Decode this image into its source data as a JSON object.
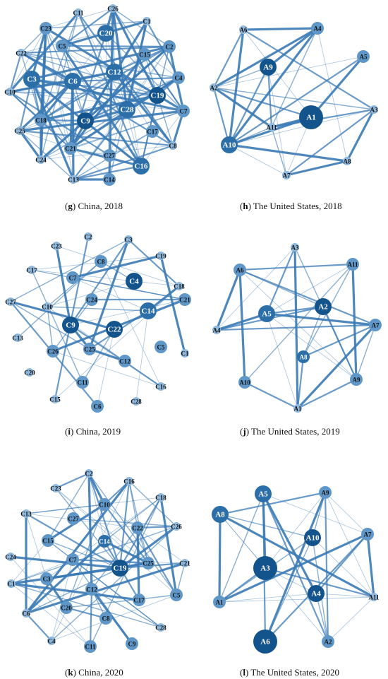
{
  "panels": [
    {
      "id": "g",
      "caption_letter": "g",
      "caption_text": " China, 2018",
      "nodes": [
        {
          "label": "C26",
          "size": 0,
          "shade": 0
        },
        {
          "label": "C11",
          "size": 0,
          "shade": 0
        },
        {
          "label": "C1",
          "size": 0,
          "shade": 0
        },
        {
          "label": "C23",
          "size": 1,
          "shade": 1
        },
        {
          "label": "C20",
          "size": 2,
          "shade": 2
        },
        {
          "label": "C2",
          "size": 1,
          "shade": 1
        },
        {
          "label": "C22",
          "size": 0,
          "shade": 0
        },
        {
          "label": "C5",
          "size": 1,
          "shade": 1
        },
        {
          "label": "C15",
          "size": 1,
          "shade": 1
        },
        {
          "label": "C10",
          "size": 0,
          "shade": 0
        },
        {
          "label": "C3",
          "size": 2,
          "shade": 2
        },
        {
          "label": "C12",
          "size": 2,
          "shade": 2
        },
        {
          "label": "C4",
          "size": 1,
          "shade": 1
        },
        {
          "label": "C6",
          "size": 2,
          "shade": 2
        },
        {
          "label": "C19",
          "size": 2,
          "shade": 3
        },
        {
          "label": "C28",
          "size": 2,
          "shade": 2
        },
        {
          "label": "C7",
          "size": 1,
          "shade": 1
        },
        {
          "label": "C18",
          "size": 1,
          "shade": 1
        },
        {
          "label": "C9",
          "size": 2,
          "shade": 3
        },
        {
          "label": "C25",
          "size": 0,
          "shade": 0
        },
        {
          "label": "C17",
          "size": 1,
          "shade": 1
        },
        {
          "label": "C8",
          "size": 0,
          "shade": 0
        },
        {
          "label": "C21",
          "size": 1,
          "shade": 1
        },
        {
          "label": "C27",
          "size": 1,
          "shade": 1
        },
        {
          "label": "C16",
          "size": 2,
          "shade": 2
        },
        {
          "label": "C24",
          "size": 0,
          "shade": 0
        },
        {
          "label": "C13",
          "size": 0,
          "shade": 0
        },
        {
          "label": "C14",
          "size": 1,
          "shade": 1
        }
      ]
    },
    {
      "id": "h",
      "caption_letter": "h",
      "caption_text": " The United States, 2018",
      "nodes": [
        {
          "label": "A6",
          "size": 0,
          "shade": 0
        },
        {
          "label": "A4",
          "size": 1,
          "shade": 1
        },
        {
          "label": "A9",
          "size": 2,
          "shade": 3
        },
        {
          "label": "A5",
          "size": 1,
          "shade": 1
        },
        {
          "label": "A2",
          "size": 0,
          "shade": 0
        },
        {
          "label": "A3",
          "size": 0,
          "shade": 0
        },
        {
          "label": "A1",
          "size": 3,
          "shade": 3
        },
        {
          "label": "A11",
          "size": 0,
          "shade": 0
        },
        {
          "label": "A10",
          "size": 2,
          "shade": 2
        },
        {
          "label": "A8",
          "size": 0,
          "shade": 0
        },
        {
          "label": "A7",
          "size": 0,
          "shade": 0
        }
      ]
    },
    {
      "id": "i",
      "caption_letter": "i",
      "caption_text": " China, 2019",
      "nodes": [
        {
          "label": "C2",
          "size": 0,
          "shade": 0
        },
        {
          "label": "C3",
          "size": 0,
          "shade": 0
        },
        {
          "label": "C23",
          "size": 0,
          "shade": 0
        },
        {
          "label": "C8",
          "size": 1,
          "shade": 1
        },
        {
          "label": "C19",
          "size": 0,
          "shade": 0
        },
        {
          "label": "C17",
          "size": 0,
          "shade": 0
        },
        {
          "label": "C7",
          "size": 1,
          "shade": 1
        },
        {
          "label": "C4",
          "size": 2,
          "shade": 3
        },
        {
          "label": "C18",
          "size": 0,
          "shade": 0
        },
        {
          "label": "C24",
          "size": 1,
          "shade": 1
        },
        {
          "label": "C27",
          "size": 0,
          "shade": 0
        },
        {
          "label": "C10",
          "size": 0,
          "shade": 0
        },
        {
          "label": "C14",
          "size": 2,
          "shade": 2
        },
        {
          "label": "C21",
          "size": 1,
          "shade": 1
        },
        {
          "label": "C9",
          "size": 2,
          "shade": 3
        },
        {
          "label": "C22",
          "size": 2,
          "shade": 3
        },
        {
          "label": "C13",
          "size": 0,
          "shade": 0
        },
        {
          "label": "C26",
          "size": 1,
          "shade": 1
        },
        {
          "label": "C25",
          "size": 1,
          "shade": 1
        },
        {
          "label": "C5",
          "size": 1,
          "shade": 1
        },
        {
          "label": "C1",
          "size": 0,
          "shade": 0
        },
        {
          "label": "C12",
          "size": 1,
          "shade": 1
        },
        {
          "label": "C20",
          "size": 0,
          "shade": 0
        },
        {
          "label": "C11",
          "size": 1,
          "shade": 1
        },
        {
          "label": "C16",
          "size": 0,
          "shade": 0
        },
        {
          "label": "C15",
          "size": 0,
          "shade": 0
        },
        {
          "label": "C6",
          "size": 1,
          "shade": 1
        },
        {
          "label": "C28",
          "size": 0,
          "shade": 0
        }
      ]
    },
    {
      "id": "j",
      "caption_letter": "j",
      "caption_text": " The United States, 2019",
      "nodes": [
        {
          "label": "A3",
          "size": 0,
          "shade": 0
        },
        {
          "label": "A6",
          "size": 1,
          "shade": 1
        },
        {
          "label": "A11",
          "size": 1,
          "shade": 1
        },
        {
          "label": "A5",
          "size": 2,
          "shade": 2
        },
        {
          "label": "A2",
          "size": 2,
          "shade": 3
        },
        {
          "label": "A7",
          "size": 1,
          "shade": 1
        },
        {
          "label": "A4",
          "size": 0,
          "shade": 0
        },
        {
          "label": "A8",
          "size": 1,
          "shade": 2
        },
        {
          "label": "A10",
          "size": 1,
          "shade": 1
        },
        {
          "label": "A9",
          "size": 1,
          "shade": 1
        },
        {
          "label": "A1",
          "size": 0,
          "shade": 0
        }
      ]
    },
    {
      "id": "k",
      "caption_letter": "k",
      "caption_text": " China, 2020",
      "nodes": [
        {
          "label": "C2",
          "size": 0,
          "shade": 0
        },
        {
          "label": "C16",
          "size": 0,
          "shade": 0
        },
        {
          "label": "C23",
          "size": 0,
          "shade": 0
        },
        {
          "label": "C10",
          "size": 1,
          "shade": 1
        },
        {
          "label": "C18",
          "size": 0,
          "shade": 0
        },
        {
          "label": "C13",
          "size": 0,
          "shade": 0
        },
        {
          "label": "C27",
          "size": 1,
          "shade": 1
        },
        {
          "label": "C22",
          "size": 1,
          "shade": 1
        },
        {
          "label": "C26",
          "size": 0,
          "shade": 0
        },
        {
          "label": "C15",
          "size": 1,
          "shade": 1
        },
        {
          "label": "C14",
          "size": 1,
          "shade": 2
        },
        {
          "label": "C24",
          "size": 0,
          "shade": 0
        },
        {
          "label": "C7",
          "size": 1,
          "shade": 1
        },
        {
          "label": "C19",
          "size": 2,
          "shade": 3
        },
        {
          "label": "C25",
          "size": 1,
          "shade": 1
        },
        {
          "label": "C21",
          "size": 0,
          "shade": 0
        },
        {
          "label": "C1",
          "size": 0,
          "shade": 0
        },
        {
          "label": "C3",
          "size": 1,
          "shade": 1
        },
        {
          "label": "C12",
          "size": 1,
          "shade": 1
        },
        {
          "label": "C17",
          "size": 1,
          "shade": 1
        },
        {
          "label": "C5",
          "size": 1,
          "shade": 1
        },
        {
          "label": "C6",
          "size": 0,
          "shade": 0
        },
        {
          "label": "C20",
          "size": 1,
          "shade": 1
        },
        {
          "label": "C8",
          "size": 1,
          "shade": 1
        },
        {
          "label": "C28",
          "size": 0,
          "shade": 0
        },
        {
          "label": "C4",
          "size": 0,
          "shade": 0
        },
        {
          "label": "C11",
          "size": 1,
          "shade": 1
        },
        {
          "label": "C9",
          "size": 1,
          "shade": 1
        }
      ]
    },
    {
      "id": "l",
      "caption_letter": "l",
      "caption_text": " The United States, 2020",
      "nodes": [
        {
          "label": "A5",
          "size": 2,
          "shade": 2
        },
        {
          "label": "A9",
          "size": 1,
          "shade": 1
        },
        {
          "label": "A8",
          "size": 2,
          "shade": 2
        },
        {
          "label": "A10",
          "size": 2,
          "shade": 3
        },
        {
          "label": "A7",
          "size": 1,
          "shade": 1
        },
        {
          "label": "A3",
          "size": 3,
          "shade": 3
        },
        {
          "label": "A4",
          "size": 2,
          "shade": 3
        },
        {
          "label": "A1",
          "size": 1,
          "shade": 1
        },
        {
          "label": "A11",
          "size": 0,
          "shade": 0
        },
        {
          "label": "A6",
          "size": 3,
          "shade": 3
        },
        {
          "label": "A2",
          "size": 1,
          "shade": 1
        }
      ]
    }
  ],
  "colors": {
    "node_shades": [
      "#8fb8dd",
      "#5f97c9",
      "#2c6fa8",
      "#14548c"
    ],
    "edge": "#3a7ab5"
  }
}
